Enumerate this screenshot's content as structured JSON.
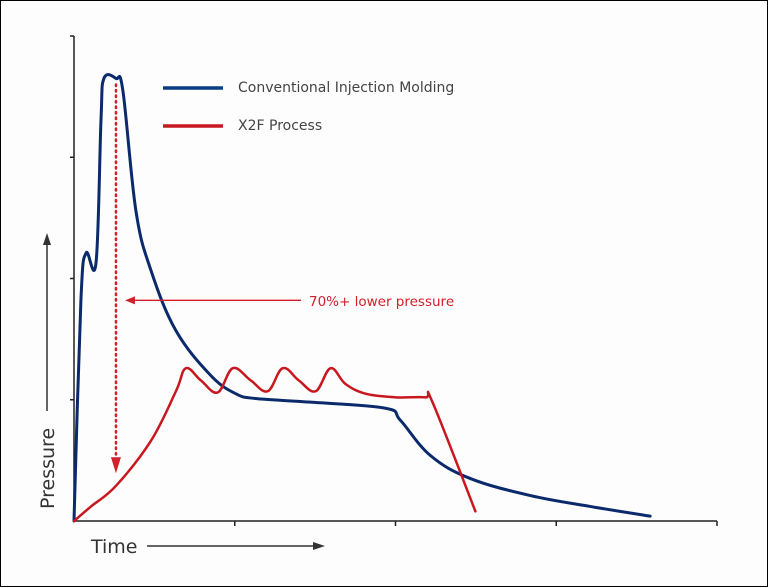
{
  "chart_data": {
    "type": "line",
    "xlabel": "Time",
    "ylabel": "Pressure",
    "xlim": [
      0,
      4
    ],
    "ylim": [
      0,
      4
    ],
    "grid": false,
    "legend_position": "top",
    "series": [
      {
        "name": "Conventional Injection Molding",
        "color": "#0b2a6b",
        "points": [
          [
            0,
            0
          ],
          [
            0.043,
            1.82
          ],
          [
            0.075,
            2.21
          ],
          [
            0.137,
            2.13
          ],
          [
            0.168,
            3.31
          ],
          [
            0.186,
            3.65
          ],
          [
            0.261,
            3.65
          ],
          [
            0.304,
            3.55
          ],
          [
            0.385,
            2.56
          ],
          [
            0.478,
            2.07
          ],
          [
            0.634,
            1.57
          ],
          [
            0.851,
            1.2
          ],
          [
            1.006,
            1.05
          ],
          [
            1.131,
            1.01
          ],
          [
            1.472,
            0.98
          ],
          [
            1.938,
            0.93
          ],
          [
            2.031,
            0.83
          ],
          [
            2.217,
            0.54
          ],
          [
            2.466,
            0.35
          ],
          [
            2.839,
            0.21
          ],
          [
            3.211,
            0.12
          ],
          [
            3.584,
            0.04
          ]
        ]
      },
      {
        "name": "X2F Process",
        "color": "#c8171e",
        "points": [
          [
            0,
            0
          ],
          [
            0.106,
            0.12
          ],
          [
            0.261,
            0.29
          ],
          [
            0.478,
            0.66
          ],
          [
            0.634,
            1.07
          ],
          [
            0.696,
            1.26
          ],
          [
            0.789,
            1.16
          ],
          [
            0.894,
            1.06
          ],
          [
            0.988,
            1.26
          ],
          [
            1.099,
            1.16
          ],
          [
            1.205,
            1.07
          ],
          [
            1.298,
            1.26
          ],
          [
            1.398,
            1.16
          ],
          [
            1.503,
            1.07
          ],
          [
            1.596,
            1.26
          ],
          [
            1.689,
            1.13
          ],
          [
            1.814,
            1.05
          ],
          [
            2.0,
            1.02
          ],
          [
            2.186,
            1.02
          ],
          [
            2.23,
            0.98
          ],
          [
            2.497,
            0.08
          ]
        ]
      }
    ],
    "annotations": [
      {
        "text": "70%+ lower pressure",
        "color": "#d3202a",
        "arrow_to": [
          0.261,
          1.82
        ],
        "drop_arrow_x": 0.261,
        "drop_arrow_from": 3.6,
        "drop_arrow_to": 0.41
      }
    ]
  }
}
